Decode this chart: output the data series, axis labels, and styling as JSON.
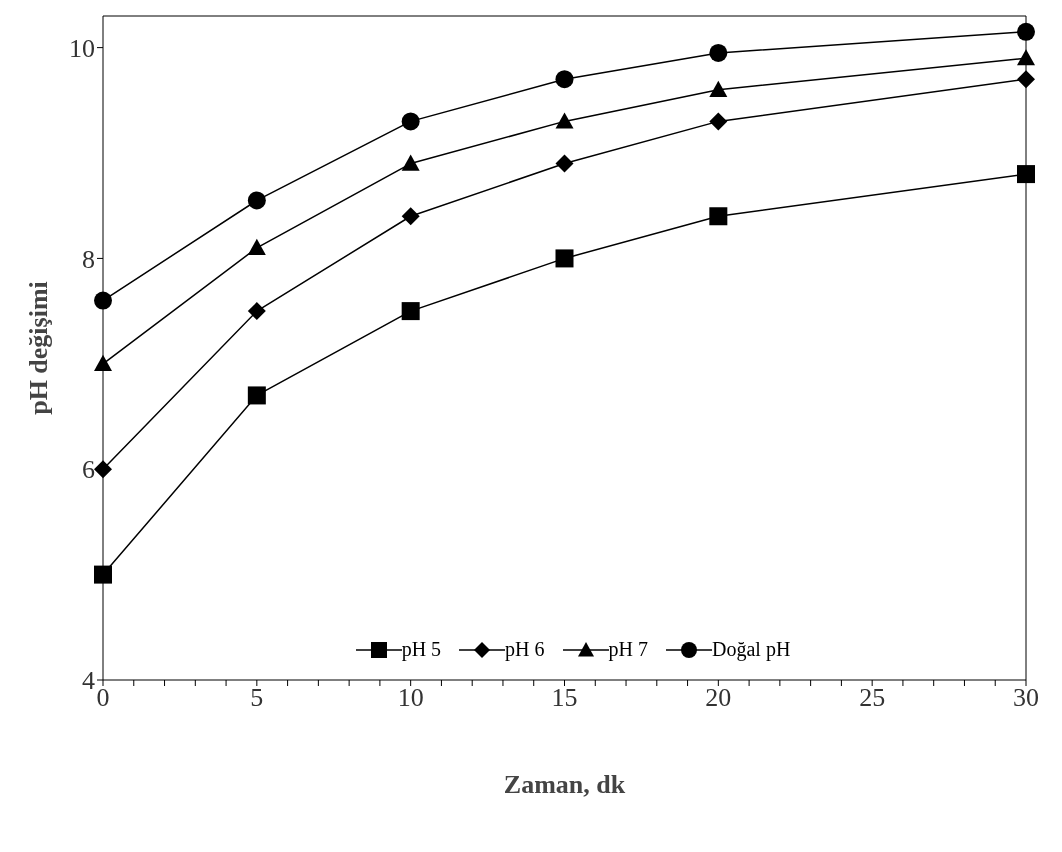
{
  "chart_data": {
    "type": "line",
    "xlabel": "Zaman, dk",
    "ylabel": "pH değişimi",
    "x": [
      0,
      5,
      10,
      15,
      20,
      30
    ],
    "series": [
      {
        "name": "pH 5",
        "color": "#000000",
        "marker": "square",
        "values": [
          5.0,
          6.7,
          7.5,
          8.0,
          8.4,
          8.8
        ]
      },
      {
        "name": "pH 6",
        "color": "#000000",
        "marker": "diamond",
        "values": [
          6.0,
          7.5,
          8.4,
          8.9,
          9.3,
          9.7
        ]
      },
      {
        "name": "pH 7",
        "color": "#000000",
        "marker": "triangle",
        "values": [
          7.0,
          8.1,
          8.9,
          9.3,
          9.6,
          9.9
        ]
      },
      {
        "name": "Doğal pH",
        "color": "#000000",
        "marker": "circle",
        "values": [
          7.6,
          8.55,
          9.3,
          9.7,
          9.95,
          10.15
        ]
      }
    ],
    "xlim": [
      0,
      30
    ],
    "xticks": [
      0,
      {
        "value": 1,
        "label": null
      },
      {
        "value": 2,
        "label": null
      },
      {
        "value": 3,
        "label": null
      },
      {
        "value": 4,
        "label": null
      },
      5,
      {
        "value": 6,
        "label": null
      },
      {
        "value": 7,
        "label": null
      },
      {
        "value": 8,
        "label": null
      },
      {
        "value": 9,
        "label": null
      },
      10,
      {
        "value": 11,
        "label": null
      },
      {
        "value": 12,
        "label": null
      },
      {
        "value": 13,
        "label": null
      },
      {
        "value": 14,
        "label": null
      },
      15,
      {
        "value": 16,
        "label": null
      },
      {
        "value": 17,
        "label": null
      },
      {
        "value": 18,
        "label": null
      },
      {
        "value": 19,
        "label": null
      },
      20,
      {
        "value": 21,
        "label": null
      },
      {
        "value": 22,
        "label": null
      },
      {
        "value": 23,
        "label": null
      },
      {
        "value": 24,
        "label": null
      },
      25,
      {
        "value": 26,
        "label": null
      },
      {
        "value": 27,
        "label": null
      },
      {
        "value": 28,
        "label": null
      },
      {
        "value": 29,
        "label": null
      },
      30
    ],
    "ylim": [
      4,
      10.3
    ],
    "yticks": [
      4,
      6,
      8,
      10
    ],
    "grid": false,
    "legend": "bottom",
    "line_style": "solid"
  }
}
